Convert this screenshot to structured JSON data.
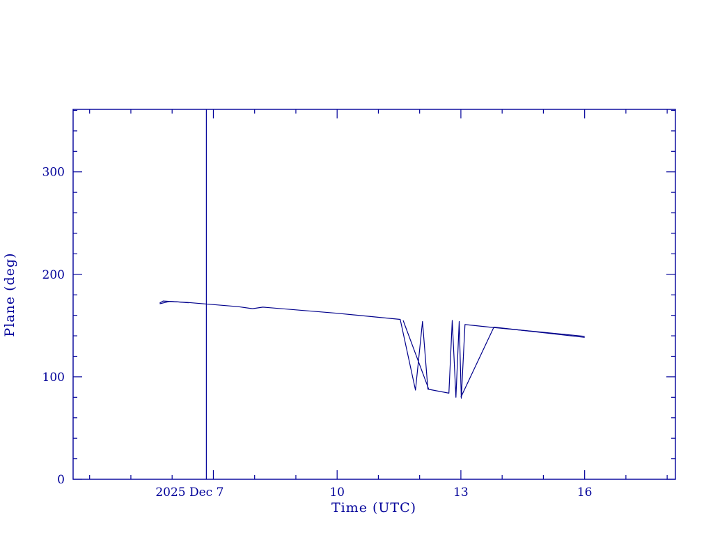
{
  "chart_data": {
    "type": "line",
    "title": "",
    "xlabel": "Time (UTC)",
    "ylabel": "Plane (deg)",
    "xlim": [
      3.6,
      18.2
    ],
    "ylim": [
      0,
      361
    ],
    "grid": false,
    "legend": "none",
    "axis_color": "#000099",
    "line_color": "#00008B",
    "xticks": {
      "major": [
        {
          "value": 7,
          "label": "2025 Dec  7"
        },
        {
          "value": 10,
          "label": "10"
        },
        {
          "value": 13,
          "label": "13"
        },
        {
          "value": 16,
          "label": "16"
        }
      ],
      "minor_step": 1
    },
    "yticks": {
      "major": [
        {
          "value": 0,
          "label": "0"
        },
        {
          "value": 100,
          "label": "100"
        },
        {
          "value": 200,
          "label": "200"
        },
        {
          "value": 300,
          "label": "300"
        }
      ],
      "minor_step": 20
    },
    "vline": {
      "x": 6.83,
      "color": "#000099"
    },
    "series": [
      {
        "name": "plane-angle-main",
        "color": "#00008B",
        "points": [
          [
            5.7,
            172
          ],
          [
            5.78,
            174
          ],
          [
            6.4,
            172.5
          ],
          [
            7.6,
            168.5
          ],
          [
            7.95,
            166.5
          ],
          [
            8.2,
            168
          ],
          [
            10.0,
            162
          ],
          [
            11.53,
            156
          ],
          [
            11.9,
            87
          ],
          [
            12.07,
            154
          ],
          [
            12.2,
            88
          ],
          [
            12.71,
            84
          ],
          [
            12.79,
            155
          ],
          [
            12.88,
            80
          ],
          [
            12.96,
            154
          ],
          [
            13.01,
            79
          ],
          [
            13.1,
            151
          ],
          [
            13.7,
            148.5
          ],
          [
            16.0,
            139.5
          ]
        ]
      },
      {
        "name": "plane-angle-start-wiggle",
        "color": "#00008B",
        "points": [
          [
            5.7,
            171.3
          ],
          [
            5.95,
            173.6
          ],
          [
            6.4,
            172.3
          ]
        ]
      },
      {
        "name": "plane-angle-branch-a",
        "color": "#00008B",
        "points": [
          [
            11.6,
            155
          ],
          [
            12.22,
            88
          ]
        ]
      },
      {
        "name": "plane-angle-branch-b",
        "color": "#00008B",
        "points": [
          [
            13.0,
            80
          ],
          [
            13.8,
            148.5
          ],
          [
            16.0,
            138.5
          ]
        ]
      }
    ]
  }
}
